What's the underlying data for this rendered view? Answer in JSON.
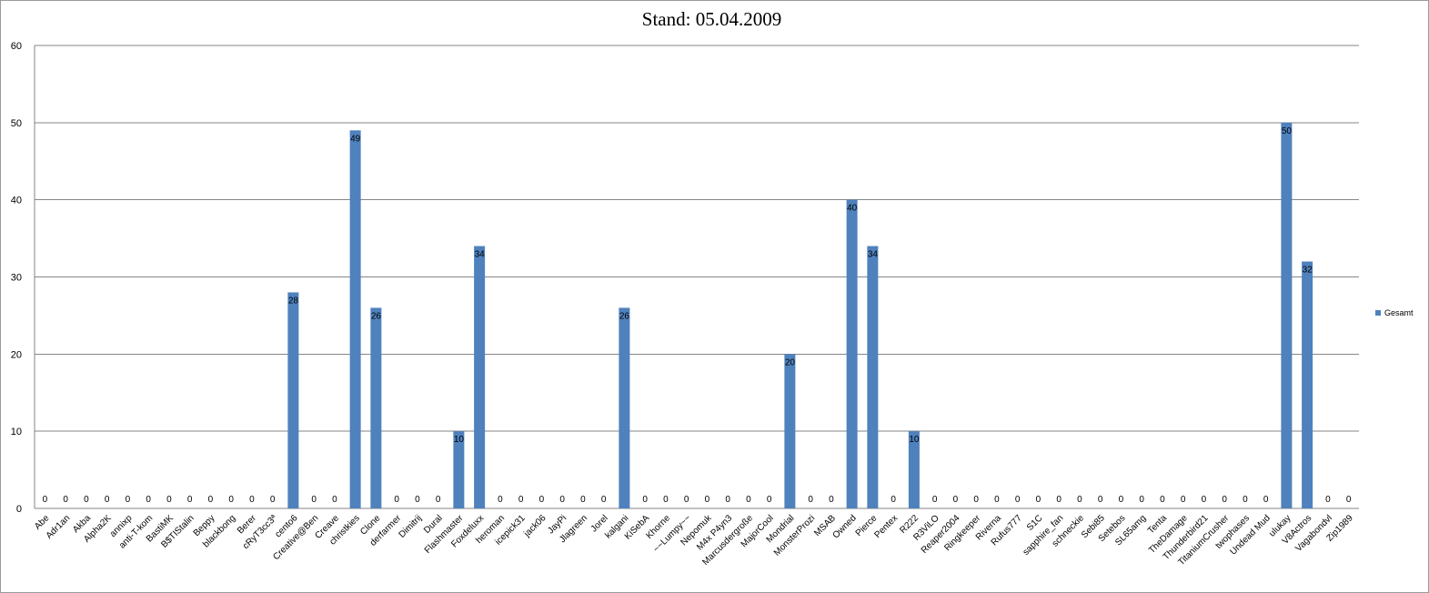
{
  "chart_data": {
    "type": "bar",
    "title": "Stand: 05.04.2009",
    "xlabel": "",
    "ylabel": "",
    "ylim": [
      0,
      60
    ],
    "yticks": [
      0,
      10,
      20,
      30,
      40,
      50,
      60
    ],
    "grid": true,
    "legend_position": "right",
    "categories": [
      "Abe",
      "Adr1an",
      "Akba",
      "Alpha2K",
      "annixp",
      "anti-T-kom",
      "BastiMK",
      "B$TIStalin",
      "Beppy",
      "blackbong",
      "Berer",
      "cRyT3cc3ª",
      "cento6",
      "Creative@Ben",
      "Creave",
      "christkies",
      "Clone",
      "derfarmer",
      "Dimitrij",
      "Dural",
      "Flashmaster",
      "Foxdeluxx",
      "heroman",
      "icepick31",
      "jack06",
      "JayPi",
      "Jlagreen",
      "Jorel",
      "kalgani",
      "KiSebA",
      "Khorne",
      "~~Lumpy~~",
      "Nepomuk",
      "M4x P4yn3",
      "Marcusdergroße",
      "MajorCool",
      "Mondrial",
      "MonsterProzi",
      "MSAB",
      "Owned",
      "Pierce",
      "Pentex",
      "R222",
      "R3ViLO",
      "Reaper2004",
      "Ringkeeper",
      "Riverna",
      "Rufus777",
      "S1C",
      "sapphire_fan",
      "schneckie",
      "Sebi85",
      "Setebos",
      "SL65amg",
      "Tenta",
      "TheDamage",
      "Thunderbird21",
      "TitaniumCrusher",
      "twophases",
      "Undead Mud",
      "ulukay",
      "V8Actros",
      "Vagabondvl",
      "Zip1989"
    ],
    "series": [
      {
        "name": "Gesamt",
        "color": "#4F81BD",
        "values": [
          0,
          0,
          0,
          0,
          0,
          0,
          0,
          0,
          0,
          0,
          0,
          0,
          28,
          0,
          0,
          49,
          26,
          0,
          0,
          0,
          10,
          34,
          0,
          0,
          0,
          0,
          0,
          0,
          26,
          0,
          0,
          0,
          0,
          0,
          0,
          0,
          20,
          0,
          0,
          40,
          34,
          0,
          10,
          0,
          0,
          0,
          0,
          0,
          0,
          0,
          0,
          0,
          0,
          0,
          0,
          0,
          0,
          0,
          0,
          0,
          50,
          32,
          0,
          0
        ]
      }
    ]
  }
}
